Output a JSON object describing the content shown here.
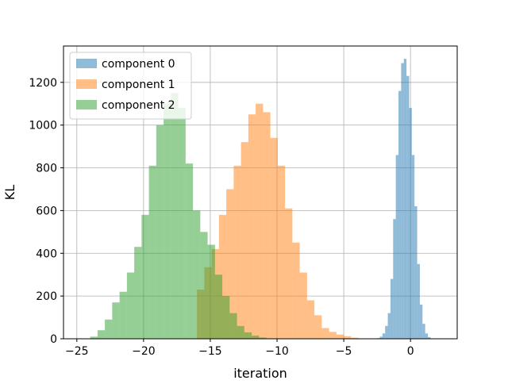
{
  "chart_data": {
    "type": "bar",
    "subtype": "overlapping-histogram",
    "title": "",
    "xlabel": "iteration",
    "ylabel": "KL",
    "xlim": [
      -26.0,
      3.5
    ],
    "ylim": [
      0,
      1370
    ],
    "xticks": [
      -25,
      -20,
      -15,
      -10,
      -5,
      0
    ],
    "xtick_labels": [
      "−25",
      "−20",
      "−15",
      "−10",
      "−5",
      "0"
    ],
    "yticks": [
      0,
      200,
      400,
      600,
      800,
      1000,
      1200
    ],
    "ytick_labels": [
      "0",
      "200",
      "400",
      "600",
      "800",
      "1000",
      "1200"
    ],
    "grid": true,
    "legend_position": "top-left",
    "opacity": 0.5,
    "series": [
      {
        "name": "component 0",
        "color": "#1f77b4",
        "bin_start": -2.5,
        "bin_width": 0.2,
        "counts": [
          3,
          10,
          25,
          60,
          120,
          280,
          560,
          860,
          1160,
          1290,
          1310,
          1230,
          1080,
          860,
          620,
          350,
          160,
          70,
          25,
          8
        ]
      },
      {
        "name": "component 1",
        "color": "#ff7f0e",
        "bin_start": -16.0,
        "bin_width": 0.55,
        "counts": [
          230,
          335,
          420,
          580,
          700,
          810,
          920,
          1050,
          1100,
          1060,
          940,
          810,
          610,
          450,
          310,
          180,
          110,
          50,
          32,
          20,
          12,
          5
        ]
      },
      {
        "name": "component 2",
        "color": "#2ca02c",
        "bin_start": -24.0,
        "bin_width": 0.55,
        "counts": [
          10,
          40,
          90,
          170,
          220,
          310,
          430,
          580,
          810,
          1000,
          1100,
          1150,
          1080,
          820,
          600,
          500,
          440,
          300,
          200,
          120,
          60,
          30,
          15,
          6
        ]
      }
    ]
  }
}
